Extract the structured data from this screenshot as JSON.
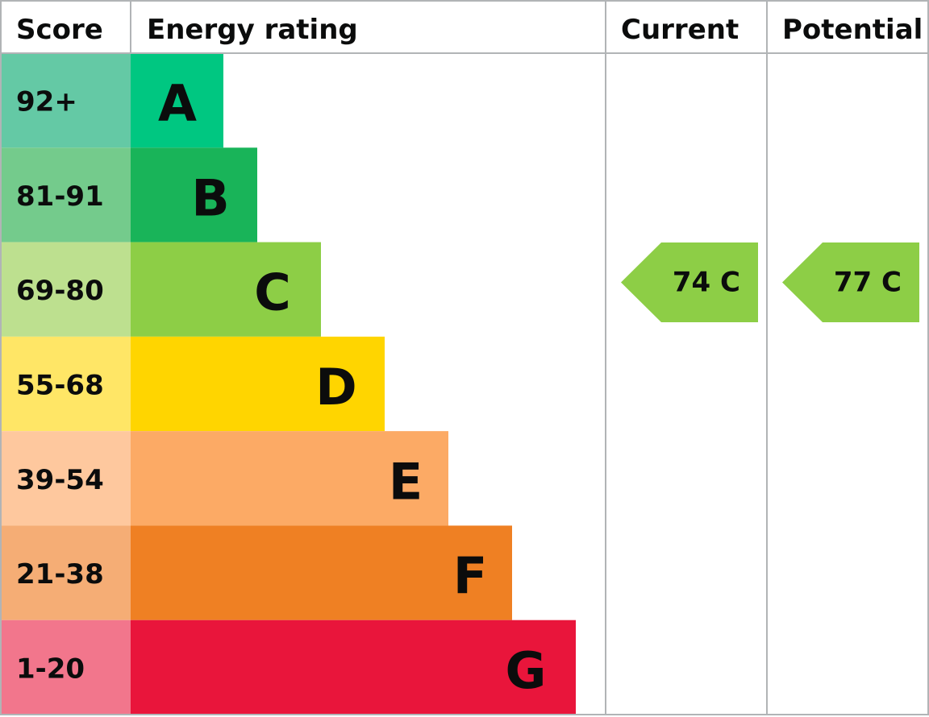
{
  "header": {
    "score": "Score",
    "energy_rating": "Energy rating",
    "current": "Current",
    "potential": "Potential"
  },
  "bands": [
    {
      "score": "92+",
      "letter": "A",
      "color": "#00c781",
      "score_color": "#64c9a5"
    },
    {
      "score": "81-91",
      "letter": "B",
      "color": "#19b459",
      "score_color": "#74cb8c"
    },
    {
      "score": "69-80",
      "letter": "C",
      "color": "#8dce46",
      "score_color": "#bde08f"
    },
    {
      "score": "55-68",
      "letter": "D",
      "color": "#ffd500",
      "score_color": "#ffe666"
    },
    {
      "score": "39-54",
      "letter": "E",
      "color": "#fcaa65",
      "score_color": "#fec89e"
    },
    {
      "score": "21-38",
      "letter": "F",
      "color": "#ef8023",
      "score_color": "#f5ad75"
    },
    {
      "score": "1-20",
      "letter": "G",
      "color": "#e9153b",
      "score_color": "#f2768c"
    }
  ],
  "current": {
    "label": "74 C",
    "color": "#8dce46"
  },
  "potential": {
    "label": "77 C",
    "color": "#8dce46"
  }
}
